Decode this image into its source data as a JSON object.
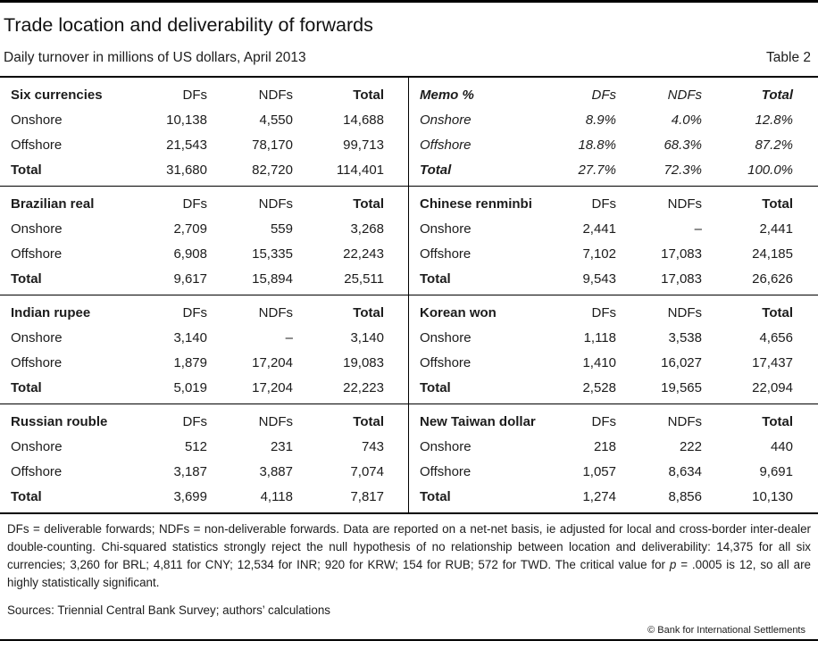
{
  "page": {
    "title": "Trade location and deliverability of forwards",
    "subtitle": "Daily turnover in millions of US dollars, April 2013",
    "table_label": "Table 2"
  },
  "table": {
    "blocks": [
      {
        "name": "Six currencies",
        "italic": false,
        "col_headers": [
          "DFs",
          "NDFs",
          "Total"
        ],
        "rows": [
          [
            "Onshore",
            "10,138",
            "4,550",
            "14,688"
          ],
          [
            "Offshore",
            "21,543",
            "78,170",
            "99,713"
          ],
          [
            "Total",
            "31,680",
            "82,720",
            "114,401"
          ]
        ]
      },
      {
        "name": "Memo %",
        "italic": true,
        "col_headers": [
          "DFs",
          "NDFs",
          "Total"
        ],
        "rows": [
          [
            "Onshore",
            "8.9%",
            "4.0%",
            "12.8%"
          ],
          [
            "Offshore",
            "18.8%",
            "68.3%",
            "87.2%"
          ],
          [
            "Total",
            "27.7%",
            "72.3%",
            "100.0%"
          ]
        ]
      },
      {
        "name": "Brazilian real",
        "italic": false,
        "col_headers": [
          "DFs",
          "NDFs",
          "Total"
        ],
        "rows": [
          [
            "Onshore",
            "2,709",
            "559",
            "3,268"
          ],
          [
            "Offshore",
            "6,908",
            "15,335",
            "22,243"
          ],
          [
            "Total",
            "9,617",
            "15,894",
            "25,511"
          ]
        ]
      },
      {
        "name": "Chinese renminbi",
        "italic": false,
        "col_headers": [
          "DFs",
          "NDFs",
          "Total"
        ],
        "rows": [
          [
            "Onshore",
            "2,441",
            "–",
            "2,441"
          ],
          [
            "Offshore",
            "7,102",
            "17,083",
            "24,185"
          ],
          [
            "Total",
            "9,543",
            "17,083",
            "26,626"
          ]
        ]
      },
      {
        "name": "Indian rupee",
        "italic": false,
        "col_headers": [
          "DFs",
          "NDFs",
          "Total"
        ],
        "rows": [
          [
            "Onshore",
            "3,140",
            "–",
            "3,140"
          ],
          [
            "Offshore",
            "1,879",
            "17,204",
            "19,083"
          ],
          [
            "Total",
            "5,019",
            "17,204",
            "22,223"
          ]
        ]
      },
      {
        "name": "Korean won",
        "italic": false,
        "col_headers": [
          "DFs",
          "NDFs",
          "Total"
        ],
        "rows": [
          [
            "Onshore",
            "1,118",
            "3,538",
            "4,656"
          ],
          [
            "Offshore",
            "1,410",
            "16,027",
            "17,437"
          ],
          [
            "Total",
            "2,528",
            "19,565",
            "22,094"
          ]
        ]
      },
      {
        "name": "Russian rouble",
        "italic": false,
        "col_headers": [
          "DFs",
          "NDFs",
          "Total"
        ],
        "rows": [
          [
            "Onshore",
            "512",
            "231",
            "743"
          ],
          [
            "Offshore",
            "3,187",
            "3,887",
            "7,074"
          ],
          [
            "Total",
            "3,699",
            "4,118",
            "7,817"
          ]
        ]
      },
      {
        "name": "New Taiwan dollar",
        "italic": false,
        "col_headers": [
          "DFs",
          "NDFs",
          "Total"
        ],
        "rows": [
          [
            "Onshore",
            "218",
            "222",
            "440"
          ],
          [
            "Offshore",
            "1,057",
            "8,634",
            "9,691"
          ],
          [
            "Total",
            "1,274",
            "8,856",
            "10,130"
          ]
        ]
      }
    ]
  },
  "footnote": {
    "part1": "DFs = deliverable forwards; NDFs = non-deliverable forwards. Data are reported on a net-net basis, ie adjusted for local and cross-border inter-dealer double-counting. Chi-squared statistics strongly reject the null hypothesis of no relationship between location and deliverability: 14,375 for all six currencies; 3,260 for BRL; 4,811 for CNY; 12,534 for INR; 920 for KRW; 154 for RUB; 572 for TWD. The critical value for ",
    "p_symbol": "p",
    "part2": " = .0005 is 12, so all are highly statistically significant."
  },
  "sources": "Sources: Triennial Central Bank Survey; authors’ calculations",
  "copyright": "© Bank for International Settlements"
}
